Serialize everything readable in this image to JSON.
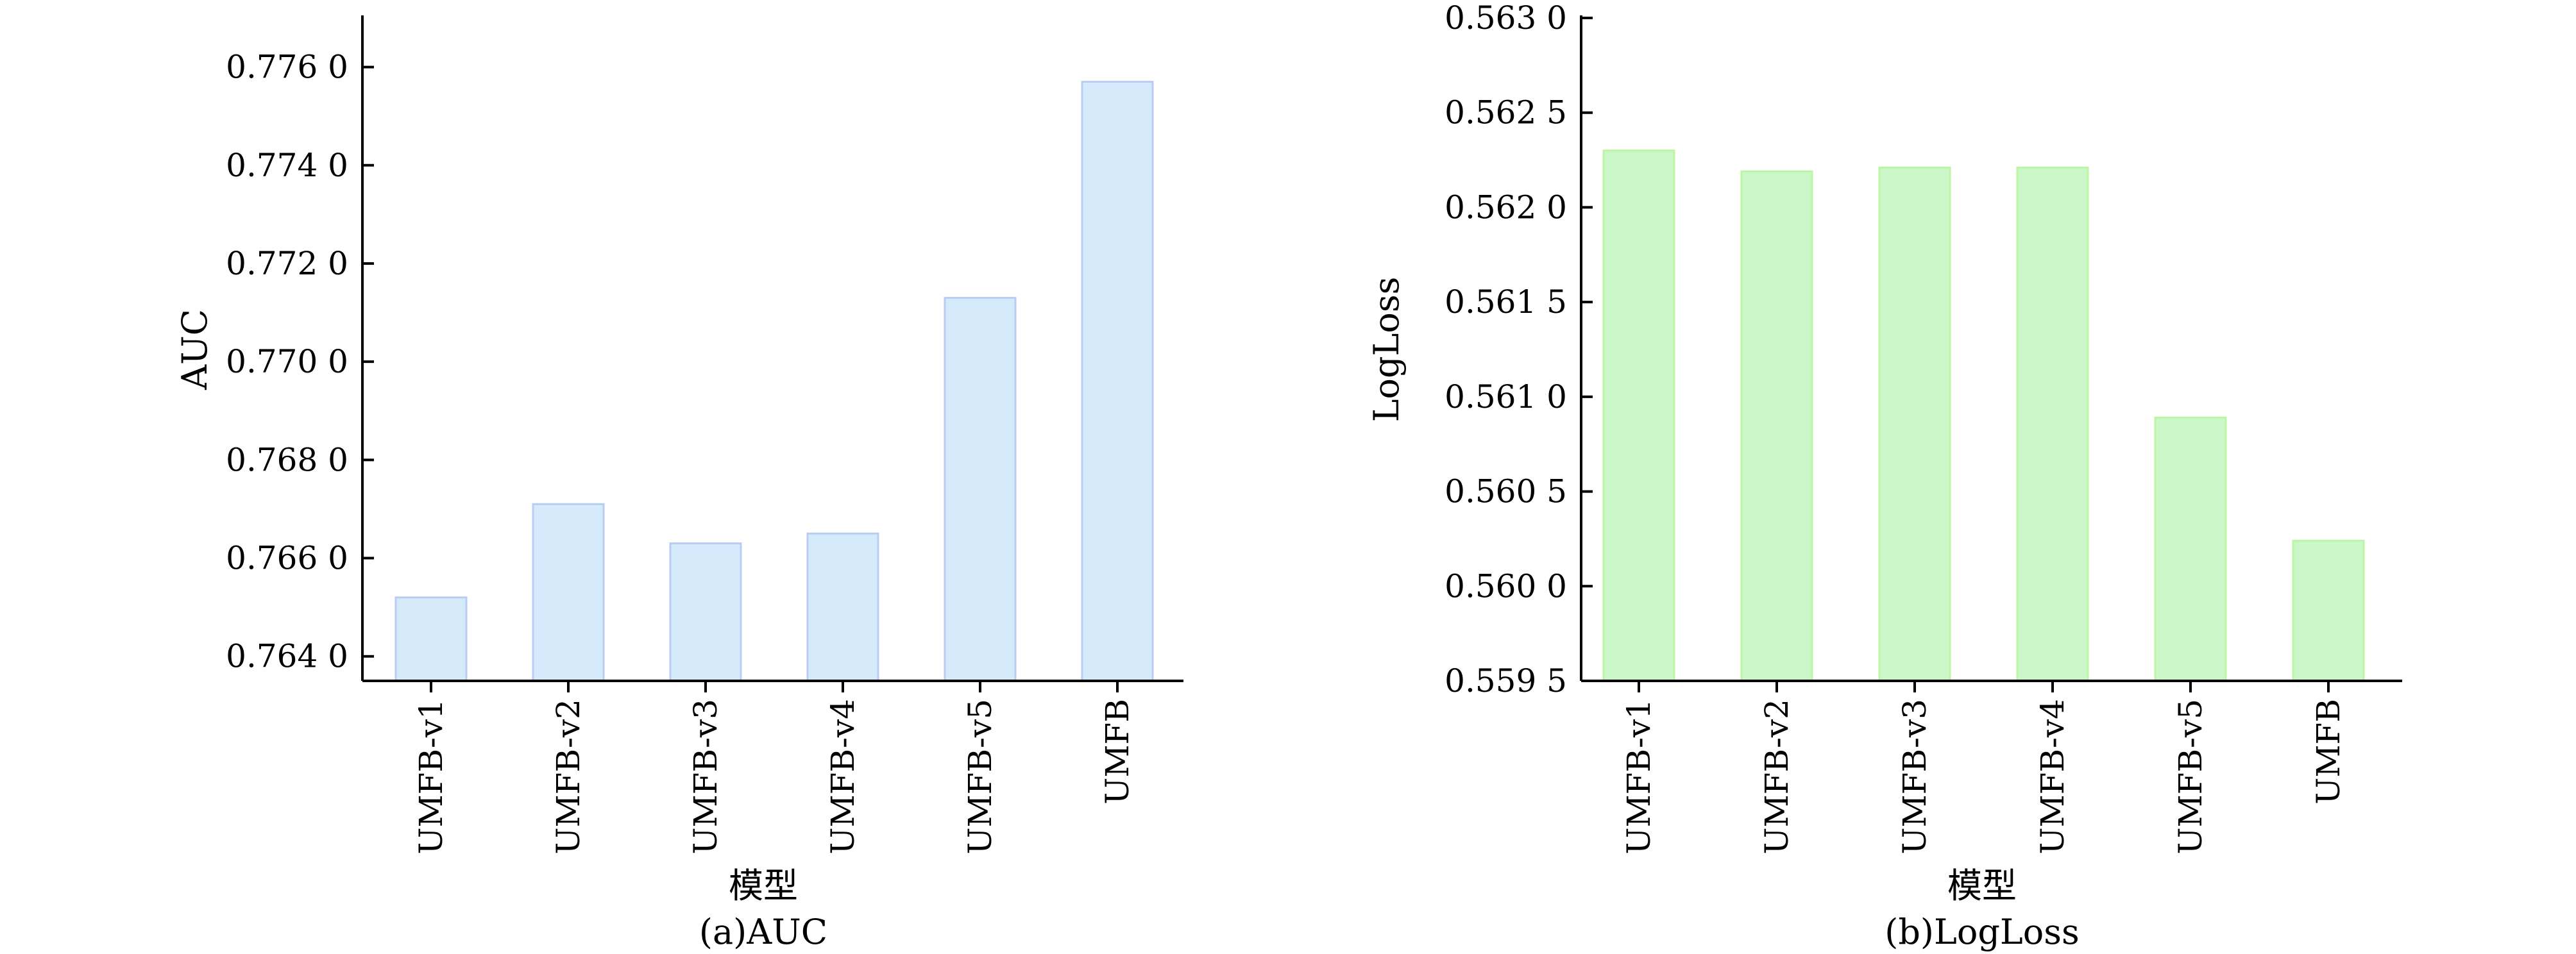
{
  "chart_data": [
    {
      "type": "bar",
      "categories": [
        "UMFB-v1",
        "UMFB-v2",
        "UMFB-v3",
        "UMFB-v4",
        "UMFB-v5",
        "UMFB"
      ],
      "values": [
        0.7652,
        0.7671,
        0.7663,
        0.7665,
        0.7713,
        0.7757
      ],
      "ylabel": "AUC",
      "xlabel": "模型",
      "caption": "(a)AUC",
      "ylim": [
        0.7635,
        0.777
      ],
      "yticks": [
        0.764,
        0.766,
        0.768,
        0.77,
        0.772,
        0.774,
        0.776
      ],
      "ytick_labels": [
        "0.764 0",
        "0.766 0",
        "0.768 0",
        "0.770 0",
        "0.772 0",
        "0.774 0",
        "0.776 0"
      ],
      "bar_color": "#d5ebfb",
      "bar_edge": "#b9cdf3",
      "grid": false
    },
    {
      "type": "bar",
      "categories": [
        "UMFB-v1",
        "UMFB-v2",
        "UMFB-v3",
        "UMFB-v4",
        "UMFB-v5",
        "UMFB"
      ],
      "values": [
        0.5623,
        0.56219,
        0.56221,
        0.56221,
        0.56089,
        0.56024
      ],
      "ylabel": "LogLoss",
      "xlabel": "模型",
      "caption": "(b)LogLoss",
      "ylim": [
        0.5595,
        0.563
      ],
      "yticks": [
        0.5595,
        0.56,
        0.5605,
        0.561,
        0.5615,
        0.562,
        0.5625,
        0.563
      ],
      "ytick_labels": [
        "0.559 5",
        "0.560 0",
        "0.560 5",
        "0.561 0",
        "0.561 5",
        "0.562 0",
        "0.562 5",
        "0.563 0"
      ],
      "bar_color": "#cbf7c8",
      "bar_edge": "#bdf4a6",
      "grid": false
    }
  ]
}
